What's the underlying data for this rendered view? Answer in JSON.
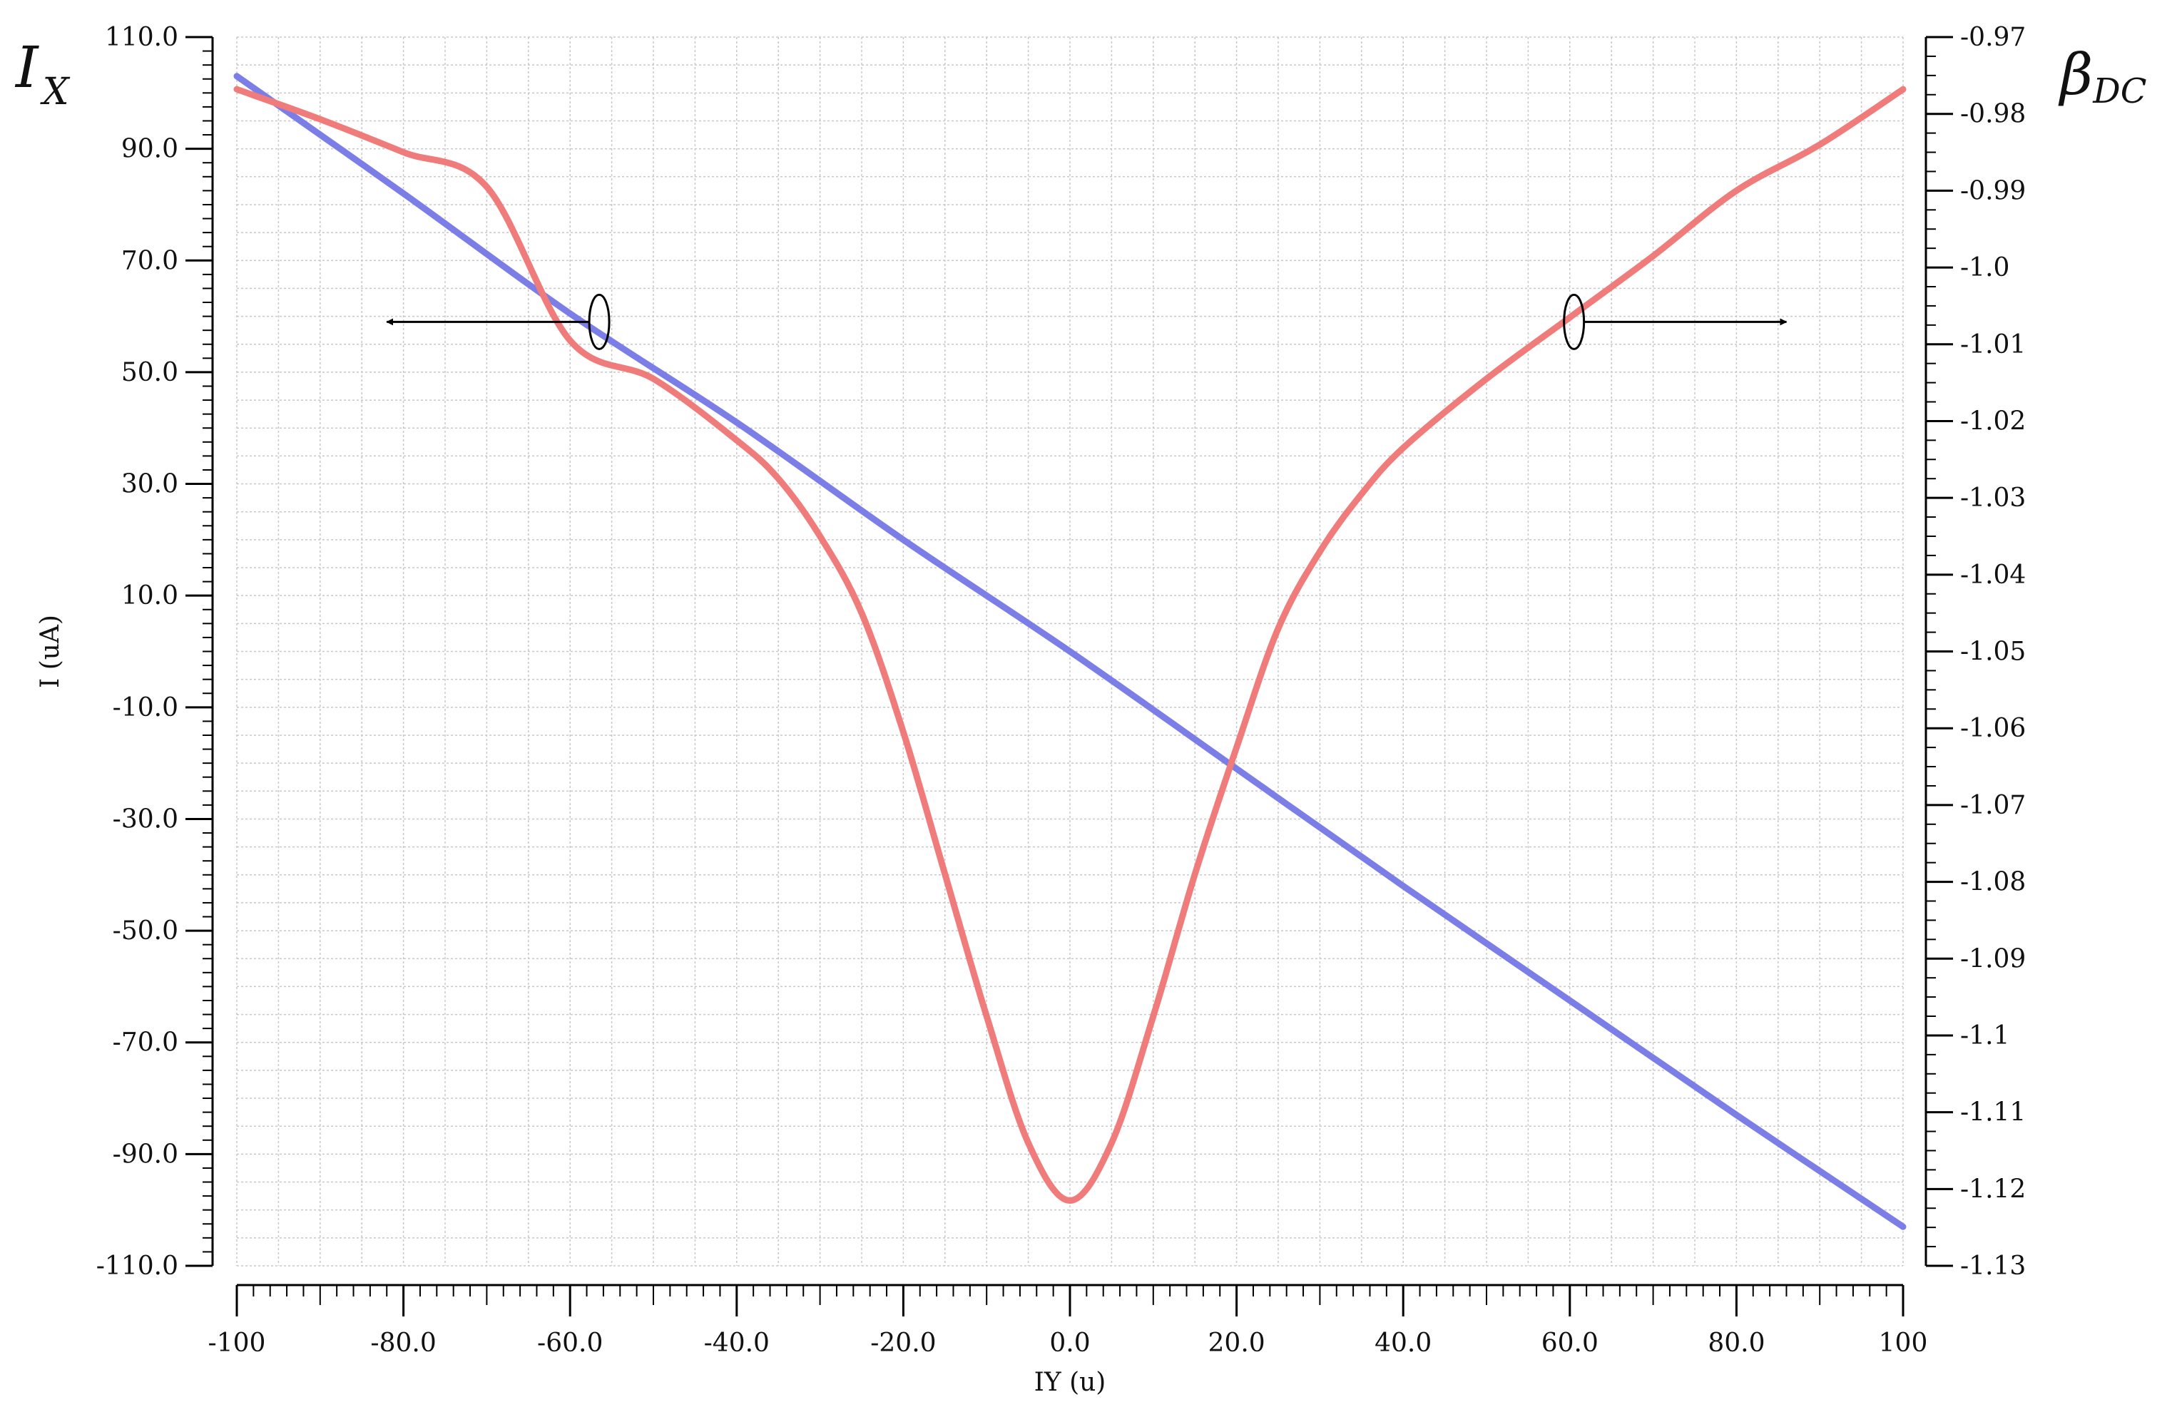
{
  "chart_data": {
    "type": "line",
    "xlabel": "IY (u)",
    "ylabel": "I (uA)",
    "left_axis_symbol": {
      "main": "I",
      "sub": "X"
    },
    "right_axis_symbol": {
      "main": "β",
      "sub": "DC"
    },
    "xlim": [
      -100,
      100
    ],
    "ylim_left": [
      -110,
      110
    ],
    "ylim_right": [
      -1.13,
      -0.97
    ],
    "grid": true,
    "x_ticks": [
      "-100",
      "-80.0",
      "-60.0",
      "-40.0",
      "-20.0",
      "0.0",
      "20.0",
      "40.0",
      "60.0",
      "80.0",
      "100"
    ],
    "y_left_ticks": [
      "110.0",
      "90.0",
      "70.0",
      "50.0",
      "30.0",
      "10.0",
      "-10.0",
      "-30.0",
      "-50.0",
      "-70.0",
      "-90.0",
      "-110.0"
    ],
    "y_right_ticks": [
      "-0.97",
      "-0.98",
      "-0.99",
      "-1.0",
      "-1.01",
      "-1.02",
      "-1.03",
      "-1.04",
      "-1.05",
      "-1.06",
      "-1.07",
      "-1.08",
      "-1.09",
      "-1.1",
      "-1.11",
      "-1.12",
      "-1.13"
    ],
    "series": [
      {
        "axis": "left",
        "color": "#7b7ee6",
        "x": [
          -100,
          -80,
          -60,
          -40,
          -20,
          0,
          20,
          40,
          60,
          80,
          100
        ],
        "y": [
          103,
          82,
          60.5,
          41,
          20,
          0,
          -21,
          -42,
          -62.5,
          -83,
          -103
        ]
      },
      {
        "axis": "right",
        "color": "#f07b7b",
        "x": [
          -100,
          -90,
          -80,
          -70,
          -60,
          -50,
          -40,
          -35,
          -30,
          -25,
          -20,
          -15,
          -10,
          -5,
          0,
          5,
          10,
          15,
          20,
          25,
          30,
          35,
          40,
          50,
          60,
          70,
          80,
          90,
          100
        ],
        "y": [
          -0.9768,
          -0.9807,
          -0.985,
          -0.9895,
          -1.0095,
          -1.0145,
          -1.0225,
          -1.0275,
          -1.035,
          -1.045,
          -1.0605,
          -1.079,
          -1.0975,
          -1.114,
          -1.1215,
          -1.114,
          -1.0975,
          -1.079,
          -1.0625,
          -1.047,
          -1.037,
          -1.0295,
          -1.0235,
          -1.0145,
          -1.0065,
          -0.9985,
          -0.99,
          -0.984,
          -0.9768
        ]
      }
    ],
    "annotations": [
      {
        "type": "ellipse-arrow",
        "x": -56.5,
        "y_axis": "left",
        "y": 59,
        "direction": "left",
        "arrow_to_x": -82
      },
      {
        "type": "ellipse-arrow",
        "x": 60.5,
        "y_axis": "left",
        "y": 59,
        "direction": "right",
        "arrow_to_x": 86
      }
    ]
  }
}
